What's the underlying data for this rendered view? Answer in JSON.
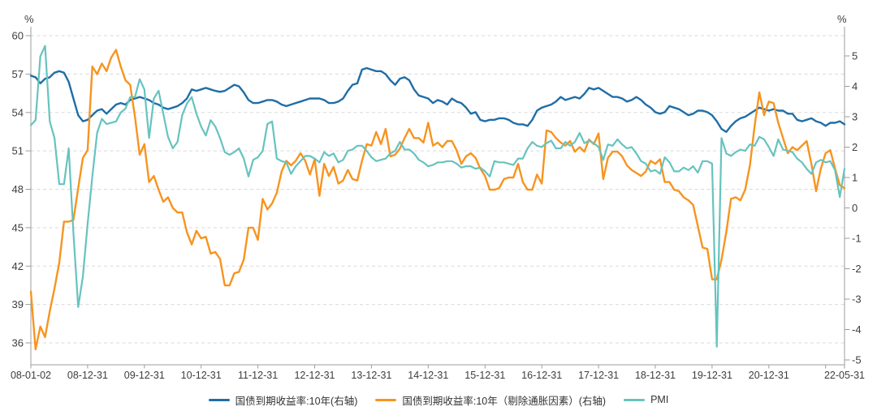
{
  "chart_data": {
    "type": "line",
    "title": "",
    "x_start": "2008-01",
    "x_end": "2022-05",
    "x_step": "month",
    "grid": "horizontal-dashed",
    "grid_color": "#d9d9d9",
    "axis_line_color": "#9c9c9c",
    "label_color": "#3d3d3d",
    "legend_position": "bottom",
    "left_axis": {
      "unit": "%",
      "min": 36,
      "max": 60,
      "ticks": [
        60,
        57,
        54,
        51,
        48,
        45,
        42,
        39,
        36
      ]
    },
    "right_axis": {
      "unit": "%",
      "min": -5,
      "max": 5,
      "ticks": [
        5,
        4,
        3,
        2,
        1,
        0,
        -1,
        -2,
        -3,
        -4,
        -5
      ]
    },
    "x_axis": {
      "ticks": [
        {
          "month": 0,
          "label": "08-01-02"
        },
        {
          "month": 12,
          "label": "08-12-31"
        },
        {
          "month": 24,
          "label": "09-12-31"
        },
        {
          "month": 36,
          "label": "10-12-31"
        },
        {
          "month": 48,
          "label": "11-12-31"
        },
        {
          "month": 60,
          "label": "12-12-31"
        },
        {
          "month": 72,
          "label": "13-12-31"
        },
        {
          "month": 84,
          "label": "14-12-31"
        },
        {
          "month": 96,
          "label": "15-12-31"
        },
        {
          "month": 108,
          "label": "16-12-31"
        },
        {
          "month": 120,
          "label": "17-12-31"
        },
        {
          "month": 132,
          "label": "18-12-31"
        },
        {
          "month": 144,
          "label": "19-12-31"
        },
        {
          "month": 156,
          "label": "20-12-31"
        },
        {
          "month": 172,
          "label": "22-05-31"
        }
      ],
      "minor_tick_months": [
        168
      ]
    },
    "series": [
      {
        "name": "国债到期收益率:10年(右轴)",
        "axis": "right",
        "color": "#1f6ea6",
        "values": [
          4.35,
          4.3,
          4.1,
          4.25,
          4.3,
          4.45,
          4.5,
          4.45,
          4.15,
          3.6,
          3.05,
          2.85,
          2.9,
          3.05,
          3.2,
          3.25,
          3.1,
          3.25,
          3.4,
          3.45,
          3.4,
          3.55,
          3.6,
          3.65,
          3.6,
          3.55,
          3.45,
          3.4,
          3.3,
          3.25,
          3.3,
          3.35,
          3.45,
          3.6,
          3.9,
          3.85,
          3.9,
          3.95,
          3.9,
          3.85,
          3.82,
          3.85,
          3.95,
          4.05,
          4.0,
          3.8,
          3.55,
          3.45,
          3.45,
          3.5,
          3.55,
          3.55,
          3.5,
          3.4,
          3.35,
          3.4,
          3.45,
          3.5,
          3.55,
          3.6,
          3.6,
          3.6,
          3.55,
          3.45,
          3.45,
          3.5,
          3.6,
          3.85,
          4.05,
          4.1,
          4.55,
          4.6,
          4.55,
          4.5,
          4.5,
          4.4,
          4.2,
          4.05,
          4.25,
          4.3,
          4.2,
          3.9,
          3.7,
          3.65,
          3.6,
          3.45,
          3.55,
          3.5,
          3.4,
          3.6,
          3.5,
          3.45,
          3.3,
          3.1,
          3.15,
          2.9,
          2.85,
          2.9,
          2.9,
          2.95,
          2.95,
          2.9,
          2.8,
          2.75,
          2.75,
          2.7,
          2.9,
          3.2,
          3.3,
          3.35,
          3.4,
          3.5,
          3.65,
          3.55,
          3.6,
          3.65,
          3.6,
          3.75,
          3.95,
          3.9,
          3.95,
          3.85,
          3.75,
          3.65,
          3.65,
          3.6,
          3.5,
          3.55,
          3.65,
          3.55,
          3.4,
          3.3,
          3.15,
          3.1,
          3.15,
          3.35,
          3.3,
          3.25,
          3.15,
          3.05,
          3.1,
          3.2,
          3.2,
          3.15,
          3.05,
          2.85,
          2.6,
          2.5,
          2.7,
          2.85,
          2.95,
          3.0,
          3.1,
          3.2,
          3.3,
          3.25,
          3.2,
          3.25,
          3.2,
          3.2,
          3.1,
          3.1,
          2.9,
          2.85,
          2.9,
          2.95,
          2.85,
          2.8,
          2.7,
          2.8,
          2.8,
          2.85,
          2.75
        ]
      },
      {
        "name": "国债到期收益率:10年（剔除通胀因素）(右轴)",
        "axis": "right",
        "color": "#f79420",
        "values": [
          -2.75,
          -4.65,
          -3.9,
          -4.25,
          -3.4,
          -2.65,
          -1.8,
          -0.45,
          -0.45,
          -0.4,
          0.65,
          1.65,
          1.9,
          4.65,
          4.4,
          4.75,
          4.5,
          4.95,
          5.2,
          4.65,
          4.2,
          4.05,
          3.0,
          1.75,
          2.1,
          0.85,
          1.05,
          0.6,
          0.2,
          0.35,
          0.0,
          -0.15,
          -0.15,
          -0.8,
          -1.2,
          -0.75,
          -1.0,
          -0.95,
          -1.5,
          -1.45,
          -1.68,
          -2.55,
          -2.55,
          -2.15,
          -2.1,
          -1.7,
          -0.65,
          -0.65,
          -1.05,
          0.3,
          -0.05,
          0.15,
          0.5,
          1.2,
          1.55,
          1.4,
          1.55,
          1.8,
          1.55,
          1.1,
          1.6,
          0.4,
          1.45,
          1.05,
          1.35,
          0.8,
          0.9,
          1.25,
          0.95,
          0.9,
          1.55,
          2.1,
          2.05,
          2.5,
          2.1,
          2.6,
          1.7,
          1.75,
          1.95,
          2.3,
          2.6,
          2.3,
          2.3,
          2.15,
          2.8,
          2.05,
          2.15,
          2.0,
          2.2,
          2.2,
          1.9,
          1.45,
          1.7,
          1.8,
          1.65,
          1.3,
          1.05,
          0.6,
          0.6,
          0.65,
          0.95,
          1.0,
          1.0,
          1.45,
          0.85,
          0.6,
          0.6,
          1.1,
          0.8,
          2.55,
          2.5,
          2.3,
          2.15,
          2.05,
          2.2,
          1.85,
          2.0,
          1.85,
          2.25,
          2.1,
          2.45,
          0.95,
          1.65,
          1.85,
          1.85,
          1.7,
          1.4,
          1.25,
          1.15,
          1.05,
          1.2,
          1.55,
          1.45,
          1.6,
          0.85,
          0.85,
          0.6,
          0.55,
          0.35,
          0.25,
          0.1,
          -0.6,
          -1.3,
          -1.35,
          -2.35,
          -2.35,
          -1.7,
          -0.8,
          0.3,
          0.35,
          0.25,
          0.6,
          1.4,
          2.7,
          3.8,
          3.05,
          3.5,
          3.45,
          2.8,
          2.3,
          1.8,
          2.0,
          1.9,
          2.05,
          2.2,
          1.45,
          0.55,
          1.3,
          1.8,
          1.9,
          1.3,
          0.75,
          0.65
        ]
      },
      {
        "name": "PMI",
        "axis": "left",
        "color": "#66c3bf",
        "values": [
          53.0,
          53.4,
          58.4,
          59.2,
          53.3,
          52.0,
          48.4,
          48.4,
          51.2,
          44.6,
          38.8,
          41.2,
          45.3,
          49.0,
          52.4,
          53.5,
          53.1,
          53.2,
          53.3,
          54.0,
          54.3,
          55.2,
          55.2,
          56.6,
          55.8,
          52.0,
          55.1,
          55.7,
          53.9,
          52.1,
          51.2,
          51.7,
          53.8,
          54.7,
          55.2,
          53.9,
          52.9,
          52.2,
          53.4,
          52.9,
          52.0,
          50.9,
          50.7,
          50.9,
          51.2,
          50.4,
          49.0,
          50.3,
          50.5,
          51.0,
          53.1,
          53.3,
          50.4,
          50.2,
          50.1,
          49.2,
          49.8,
          50.2,
          50.6,
          50.6,
          50.4,
          50.1,
          50.9,
          50.6,
          50.8,
          50.1,
          50.3,
          51.0,
          51.1,
          51.4,
          51.4,
          51.0,
          50.5,
          50.2,
          50.3,
          50.4,
          50.8,
          51.0,
          51.7,
          51.1,
          51.1,
          50.8,
          50.3,
          50.1,
          49.8,
          49.9,
          50.1,
          50.1,
          50.2,
          50.2,
          50.0,
          49.7,
          49.8,
          49.8,
          49.6,
          49.7,
          49.4,
          49.0,
          50.2,
          50.1,
          50.1,
          50.0,
          49.9,
          50.4,
          50.4,
          51.2,
          51.7,
          51.4,
          51.3,
          51.6,
          51.8,
          51.2,
          51.2,
          51.7,
          51.4,
          51.7,
          52.4,
          51.6,
          51.8,
          51.6,
          51.3,
          50.3,
          51.5,
          51.4,
          51.9,
          51.5,
          51.2,
          51.3,
          50.8,
          50.2,
          50.0,
          49.4,
          49.5,
          49.2,
          50.5,
          50.1,
          49.4,
          49.4,
          49.7,
          49.5,
          49.8,
          49.3,
          50.2,
          50.2,
          50.0,
          35.7,
          52.0,
          50.8,
          50.6,
          50.9,
          51.1,
          51.0,
          51.5,
          51.4,
          52.1,
          51.9,
          51.3,
          50.6,
          51.9,
          51.1,
          51.0,
          50.9,
          50.4,
          50.1,
          49.6,
          49.2,
          50.1,
          50.3,
          50.1,
          50.2,
          49.5,
          47.4,
          49.6
        ]
      }
    ]
  }
}
